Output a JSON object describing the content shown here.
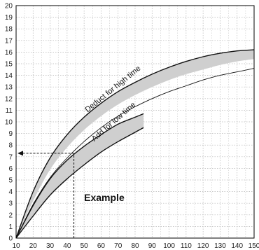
{
  "chart_data": {
    "type": "line",
    "title": "",
    "xlabel": "",
    "ylabel": "",
    "xlim": [
      10,
      150
    ],
    "ylim": [
      0,
      20
    ],
    "x_ticks": [
      10,
      20,
      30,
      40,
      50,
      60,
      70,
      80,
      90,
      100,
      110,
      120,
      130,
      140,
      150
    ],
    "y_ticks": [
      0,
      1,
      2,
      3,
      4,
      5,
      6,
      7,
      8,
      9,
      10,
      11,
      12,
      13,
      14,
      15,
      16,
      17,
      18,
      19,
      20
    ],
    "grid": true,
    "bands": [
      {
        "name": "Deduct for high time",
        "upper": [
          [
            10,
            0
          ],
          [
            20,
            4
          ],
          [
            30,
            6.9
          ],
          [
            40,
            8.9
          ],
          [
            50,
            10.4
          ],
          [
            60,
            11.6
          ],
          [
            70,
            12.6
          ],
          [
            80,
            13.4
          ],
          [
            90,
            14.1
          ],
          [
            100,
            14.7
          ],
          [
            110,
            15.2
          ],
          [
            120,
            15.6
          ],
          [
            130,
            15.9
          ],
          [
            140,
            16.1
          ],
          [
            150,
            16.2
          ]
        ],
        "lower": [
          [
            10,
            0
          ],
          [
            20,
            3.2
          ],
          [
            30,
            5.9
          ],
          [
            40,
            7.8
          ],
          [
            50,
            9.3
          ],
          [
            60,
            10.5
          ],
          [
            70,
            11.5
          ],
          [
            80,
            12.3
          ],
          [
            90,
            13.0
          ],
          [
            100,
            13.6
          ],
          [
            110,
            14.1
          ],
          [
            120,
            14.5
          ],
          [
            130,
            14.9
          ],
          [
            140,
            15.2
          ],
          [
            150,
            15.4
          ]
        ]
      },
      {
        "name": "Add for low time",
        "upper": [
          [
            10,
            0
          ],
          [
            20,
            2.8
          ],
          [
            30,
            5.1
          ],
          [
            40,
            6.7
          ],
          [
            50,
            7.9
          ],
          [
            60,
            8.9
          ],
          [
            70,
            9.8
          ],
          [
            80,
            10.4
          ],
          [
            85,
            10.7
          ]
        ],
        "lower": [
          [
            10,
            0
          ],
          [
            20,
            1.9
          ],
          [
            30,
            3.7
          ],
          [
            40,
            5.1
          ],
          [
            50,
            6.3
          ],
          [
            60,
            7.4
          ],
          [
            70,
            8.3
          ],
          [
            80,
            9.1
          ],
          [
            85,
            9.5
          ]
        ]
      }
    ],
    "series": [
      {
        "name": "",
        "points": [
          [
            10,
            0
          ],
          [
            20,
            2.9
          ],
          [
            30,
            5.2
          ],
          [
            40,
            6.9
          ],
          [
            50,
            8.3
          ],
          [
            60,
            9.5
          ],
          [
            70,
            10.5
          ],
          [
            80,
            11.3
          ],
          [
            90,
            12.0
          ],
          [
            100,
            12.6
          ],
          [
            110,
            13.1
          ],
          [
            120,
            13.6
          ],
          [
            130,
            14.0
          ],
          [
            140,
            14.3
          ],
          [
            150,
            14.6
          ]
        ]
      }
    ],
    "annotations": {
      "example_label": "Example",
      "example_x": 44,
      "example_y": 7.3
    }
  }
}
